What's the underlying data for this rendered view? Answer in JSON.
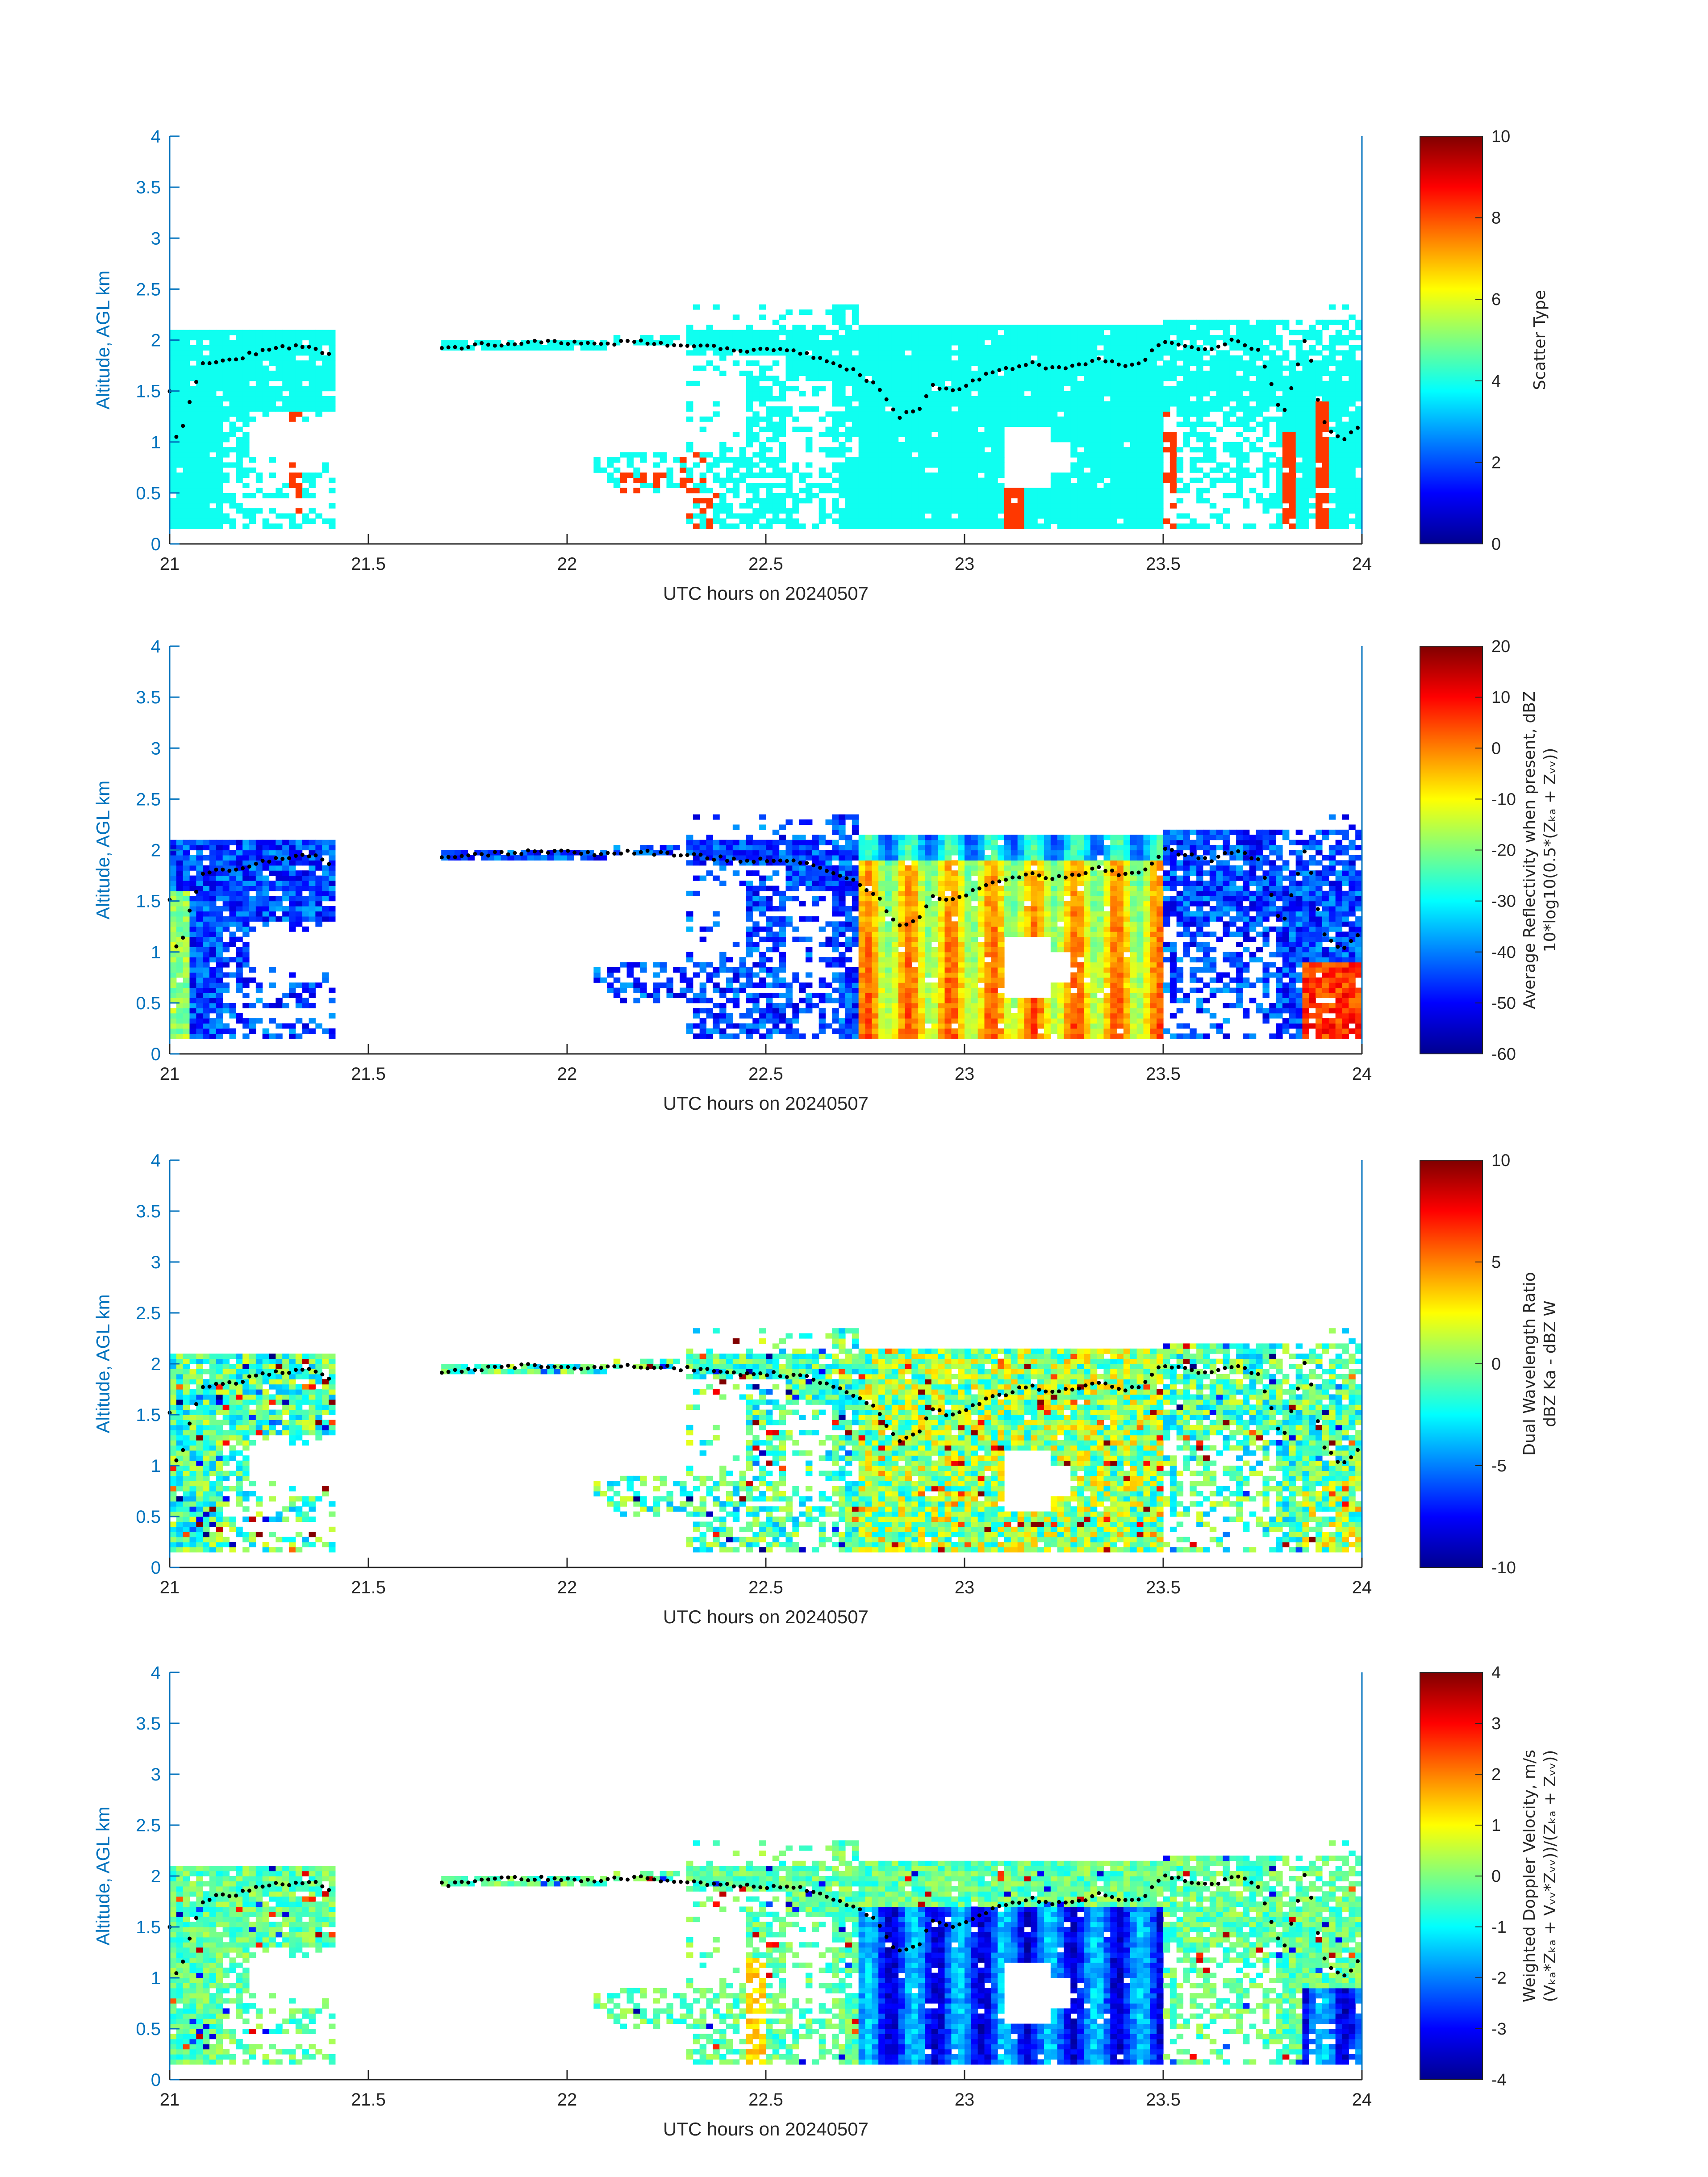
{
  "figure": {
    "axis_color": "#0072BD",
    "text_color": "#262626",
    "dot_color": "#000000"
  },
  "chart_data": [
    {
      "type": "heatmap",
      "xlabel": "UTC hours on 20240507",
      "ylabel": "Altitude, AGL km",
      "xlim": [
        21,
        24
      ],
      "ylim": [
        0,
        4
      ],
      "xticks": [
        "21",
        "21.5",
        "22",
        "22.5",
        "23",
        "23.5",
        "24"
      ],
      "yticks": [
        "0",
        "0.5",
        "1",
        "1.5",
        "2",
        "2.5",
        "3",
        "3.5",
        "4"
      ],
      "colormap": "jet",
      "colorbar": {
        "label_lines": [
          "Scatter Type"
        ],
        "clim": [
          0,
          10
        ],
        "ticks": [
          "0",
          "2",
          "4",
          "6",
          "8",
          "10"
        ]
      },
      "field": "scatter_type",
      "description_values": {
        "cloud_class": 3.8,
        "precip_class": 8.2
      }
    },
    {
      "type": "heatmap",
      "xlabel": "UTC hours on 20240507",
      "ylabel": "Altitude, AGL km",
      "xlim": [
        21,
        24
      ],
      "ylim": [
        0,
        4
      ],
      "xticks": [
        "21",
        "21.5",
        "22",
        "22.5",
        "23",
        "23.5",
        "24"
      ],
      "yticks": [
        "0",
        "0.5",
        "1",
        "1.5",
        "2",
        "2.5",
        "3",
        "3.5",
        "4"
      ],
      "colormap": "jet",
      "colorbar": {
        "label_lines": [
          "Average Reflectivity when present, dBZ",
          "10*log10(0.5*(Zₖₐ + Zᵥᵥ))"
        ],
        "clim": [
          -60,
          20
        ],
        "ticks": [
          "-60",
          "-50",
          "-40",
          "-30",
          "-20",
          "-10",
          "0",
          "10",
          "20"
        ]
      },
      "field": "reflectivity"
    },
    {
      "type": "heatmap",
      "xlabel": "UTC hours on 20240507",
      "ylabel": "Altitude, AGL km",
      "xlim": [
        21,
        24
      ],
      "ylim": [
        0,
        4
      ],
      "xticks": [
        "21",
        "21.5",
        "22",
        "22.5",
        "23",
        "23.5",
        "24"
      ],
      "yticks": [
        "0",
        "0.5",
        "1",
        "1.5",
        "2",
        "2.5",
        "3",
        "3.5",
        "4"
      ],
      "colormap": "jet",
      "colorbar": {
        "label_lines": [
          "Dual Wavelength Ratio",
          "dBZ Ka - dBZ W"
        ],
        "clim": [
          -10,
          10
        ],
        "ticks": [
          "-10",
          "-5",
          "0",
          "5",
          "10"
        ]
      },
      "field": "dwr"
    },
    {
      "type": "heatmap",
      "xlabel": "UTC hours on 20240507",
      "ylabel": "Altitude, AGL km",
      "xlim": [
        21,
        24
      ],
      "ylim": [
        0,
        4
      ],
      "xticks": [
        "21",
        "21.5",
        "22",
        "22.5",
        "23",
        "23.5",
        "24"
      ],
      "yticks": [
        "0",
        "0.5",
        "1",
        "1.5",
        "2",
        "2.5",
        "3",
        "3.5",
        "4"
      ],
      "colormap": "jet",
      "colorbar": {
        "label_lines": [
          "Weighted Doppler Velocity, m/s",
          "(Vₖₐ*Zₖₐ + Vᵥᵥ*Zᵥᵥ))/(Zₖₐ + Zᵥᵥ))"
        ],
        "clim": [
          -4,
          4
        ],
        "ticks": [
          "-4",
          "-3",
          "-2",
          "-1",
          "0",
          "1",
          "2",
          "3",
          "4"
        ]
      },
      "field": "doppler"
    }
  ],
  "cloud_top_km": [
    [
      21.0,
      1.5
    ],
    [
      21.02,
      0.95
    ],
    [
      21.05,
      1.4
    ],
    [
      21.08,
      1.75
    ],
    [
      21.12,
      1.8
    ],
    [
      21.17,
      1.82
    ],
    [
      21.22,
      1.88
    ],
    [
      21.27,
      1.92
    ],
    [
      21.32,
      1.93
    ],
    [
      21.36,
      1.95
    ],
    [
      21.4,
      1.85
    ],
    [
      21.7,
      1.92
    ],
    [
      21.78,
      1.95
    ],
    [
      21.85,
      1.97
    ],
    [
      21.92,
      1.98
    ],
    [
      21.98,
      1.98
    ],
    [
      22.05,
      1.96
    ],
    [
      22.18,
      1.98
    ],
    [
      22.3,
      1.95
    ],
    [
      22.38,
      1.92
    ],
    [
      22.45,
      1.9
    ],
    [
      22.52,
      1.9
    ],
    [
      22.6,
      1.87
    ],
    [
      22.66,
      1.78
    ],
    [
      22.72,
      1.7
    ],
    [
      22.78,
      1.55
    ],
    [
      22.83,
      1.25
    ],
    [
      22.88,
      1.3
    ],
    [
      22.92,
      1.55
    ],
    [
      22.96,
      1.5
    ],
    [
      23.0,
      1.55
    ],
    [
      23.05,
      1.65
    ],
    [
      23.1,
      1.7
    ],
    [
      23.16,
      1.78
    ],
    [
      23.22,
      1.72
    ],
    [
      23.28,
      1.75
    ],
    [
      23.34,
      1.82
    ],
    [
      23.4,
      1.75
    ],
    [
      23.45,
      1.8
    ],
    [
      23.5,
      2.0
    ],
    [
      23.56,
      1.95
    ],
    [
      23.62,
      1.9
    ],
    [
      23.68,
      2.0
    ],
    [
      23.74,
      1.9
    ],
    [
      23.8,
      1.25
    ],
    [
      23.86,
      2.05
    ],
    [
      23.9,
      1.2
    ],
    [
      23.95,
      1.0
    ],
    [
      24.0,
      1.2
    ]
  ]
}
